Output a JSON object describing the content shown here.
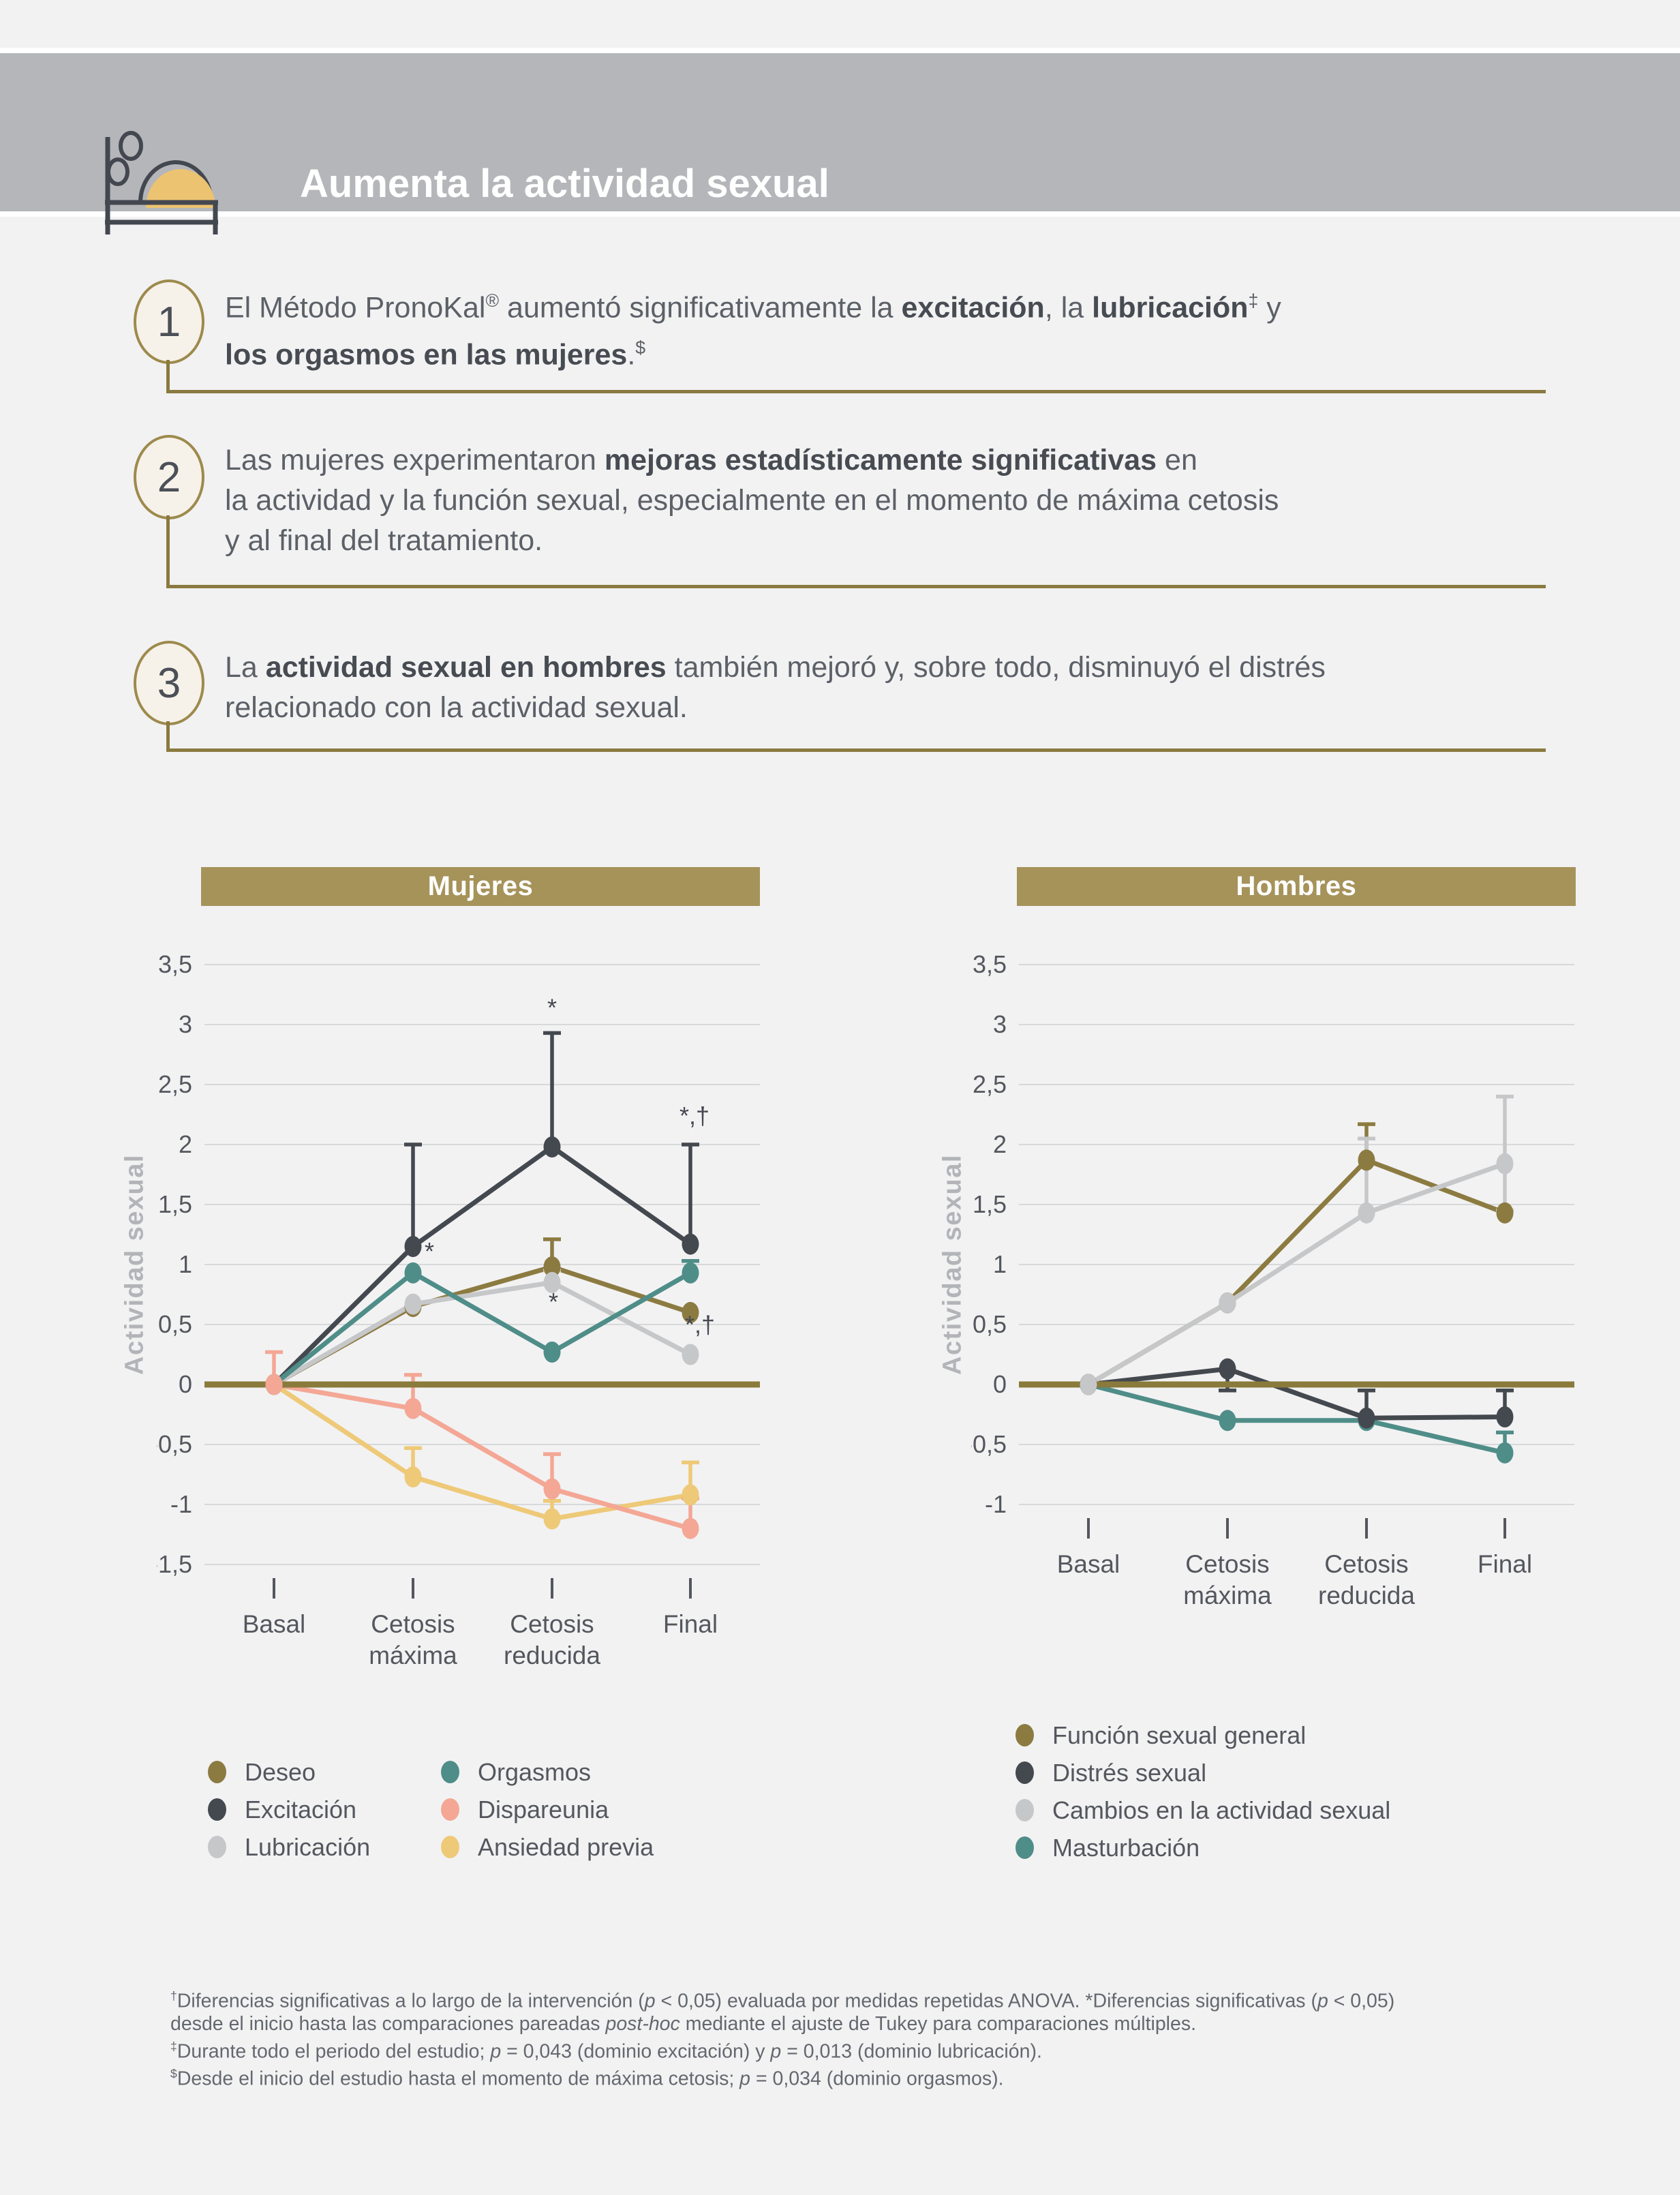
{
  "header": {
    "title": "Aumenta la actividad sexual"
  },
  "points": [
    {
      "number": "1",
      "segments": [
        {
          "t": "El Método PronoKal"
        },
        {
          "t": "®",
          "sup": true
        },
        {
          "t": " aumentó significativamente la "
        },
        {
          "t": "excitación",
          "b": true
        },
        {
          "t": ", la "
        },
        {
          "t": "lubricación",
          "b": true
        },
        {
          "t": "‡",
          "sup": true
        },
        {
          "t": " y"
        },
        {
          "br": true
        },
        {
          "t": "los orgasmos en las mujeres",
          "b": true
        },
        {
          "t": "."
        },
        {
          "t": "$",
          "sup": true
        }
      ]
    },
    {
      "number": "2",
      "segments": [
        {
          "t": "Las mujeres experimentaron "
        },
        {
          "t": "mejoras estadísticamente significativas",
          "b": true
        },
        {
          "t": " en"
        },
        {
          "br": true
        },
        {
          "t": "la actividad y la función sexual, especialmente en el momento de máxima cetosis"
        },
        {
          "br": true
        },
        {
          "t": "y al final del tratamiento."
        }
      ]
    },
    {
      "number": "3",
      "segments": [
        {
          "t": "La "
        },
        {
          "t": "actividad sexual en hombres",
          "b": true
        },
        {
          "t": " también mejoró y, sobre todo, disminuyó el distrés"
        },
        {
          "br": true
        },
        {
          "t": "relacionado con la actividad sexual."
        }
      ]
    }
  ],
  "colors": {
    "background": "#f2f2f3",
    "header_band": "#b5b6ba",
    "gold_bar": "#a6935a",
    "accent_olive": "#8a7a40",
    "zero_line": "#8a7a3b",
    "circle_border": "#9d8a4c",
    "circle_fill": "#f6f2e9",
    "body_text": "#5c6067",
    "tick_text": "#54575d",
    "icon_gold": "#ecc371",
    "icon_dark": "#43474f"
  },
  "chart_data": [
    {
      "id": "mujeres",
      "type": "line",
      "title": "Mujeres",
      "xlabel": "",
      "ylabel": "Actividad sexual",
      "categories": [
        "Basal",
        "Cetosis máxima",
        "Cetosis reducida",
        "Final"
      ],
      "ylim": [
        -1.5,
        3.5
      ],
      "grid": true,
      "zero_baseline": true,
      "yticks": [
        {
          "label": "3,5",
          "v": 3.5
        },
        {
          "label": "3",
          "v": 3
        },
        {
          "label": "2,5",
          "v": 2.5
        },
        {
          "label": "2",
          "v": 2
        },
        {
          "label": "1,5",
          "v": 1.5
        },
        {
          "label": "1",
          "v": 1
        },
        {
          "label": "0,5",
          "v": 0.5
        },
        {
          "label": "0",
          "v": 0
        },
        {
          "label": "-0,5",
          "v": -0.5
        },
        {
          "label": "-1",
          "v": -1
        },
        {
          "label": "-1,5",
          "v": -1.5
        }
      ],
      "series": [
        {
          "name": "Deseo",
          "color": "#8c7b41",
          "values": [
            0,
            0.65,
            0.98,
            0.6
          ],
          "err_top": [
            null,
            null,
            1.21,
            null
          ]
        },
        {
          "name": "Excitación",
          "color": "#44484f",
          "values": [
            0,
            1.15,
            1.98,
            1.17
          ],
          "err_top": [
            null,
            2.0,
            2.93,
            2.0
          ]
        },
        {
          "name": "Lubricación",
          "color": "#c6c7c9",
          "values": [
            0,
            0.67,
            0.85,
            0.25
          ],
          "err_top": [
            null,
            null,
            0.95,
            null
          ]
        },
        {
          "name": "Orgasmos",
          "color": "#4f8d88",
          "values": [
            0,
            0.93,
            0.27,
            0.93
          ],
          "err_top": [
            null,
            null,
            null,
            1.03
          ]
        },
        {
          "name": "Ansiedad previa",
          "color": "#eec977",
          "values": [
            0,
            -0.77,
            -1.12,
            -0.92
          ],
          "err_top": [
            null,
            -0.53,
            -0.97,
            -0.65
          ]
        },
        {
          "name": "Dispareunia",
          "color": "#f4a795",
          "values": [
            0,
            -0.2,
            -0.87,
            -1.2
          ],
          "err_top": [
            0.27,
            0.08,
            -0.58,
            -0.95
          ]
        }
      ],
      "annotations": [
        {
          "text": "*",
          "xi": 1,
          "y": 1.04,
          "dx": 24
        },
        {
          "text": "*",
          "xi": 2,
          "y": 3.07,
          "dx": 0
        },
        {
          "text": "*",
          "xi": 2,
          "y": 0.62,
          "dx": 2
        },
        {
          "text": "*,†",
          "xi": 3,
          "y": 2.17,
          "dx": 6
        },
        {
          "text": "*,†",
          "xi": 3,
          "y": 0.43,
          "dx": 14
        }
      ],
      "legend": {
        "position": "bottom",
        "columns": 2,
        "entries": [
          {
            "label": "Deseo",
            "color": "#8c7b41"
          },
          {
            "label": "Excitación",
            "color": "#44484f"
          },
          {
            "label": "Lubricación",
            "color": "#c6c7c9"
          },
          {
            "label": "Orgasmos",
            "color": "#4f8d88"
          },
          {
            "label": "Dispareunia",
            "color": "#f4a795"
          },
          {
            "label": "Ansiedad previa",
            "color": "#eec977"
          }
        ]
      }
    },
    {
      "id": "hombres",
      "type": "line",
      "title": "Hombres",
      "xlabel": "",
      "ylabel": "Actividad sexual",
      "categories": [
        "Basal",
        "Cetosis máxima",
        "Cetosis reducida",
        "Final"
      ],
      "ylim": [
        -1,
        3.5
      ],
      "grid": true,
      "zero_baseline": true,
      "yticks": [
        {
          "label": "3,5",
          "v": 3.5
        },
        {
          "label": "3",
          "v": 3
        },
        {
          "label": "2,5",
          "v": 2.5
        },
        {
          "label": "2",
          "v": 2
        },
        {
          "label": "1,5",
          "v": 1.5
        },
        {
          "label": "1",
          "v": 1
        },
        {
          "label": "0,5",
          "v": 0.5
        },
        {
          "label": "0",
          "v": 0
        },
        {
          "label": "-0,5",
          "v": -0.5
        },
        {
          "label": "-1",
          "v": -1
        }
      ],
      "series": [
        {
          "name": "Función sexual general",
          "color": "#8c7b41",
          "values": [
            0,
            0.68,
            1.87,
            1.43
          ],
          "err_top": [
            null,
            null,
            2.17,
            null
          ]
        },
        {
          "name": "Masturbación",
          "color": "#4f8d88",
          "values": [
            0,
            -0.3,
            -0.3,
            -0.57
          ],
          "err_top": [
            null,
            null,
            null,
            -0.4
          ]
        },
        {
          "name": "Distrés sexual",
          "color": "#44484f",
          "values": [
            0,
            0.13,
            -0.28,
            -0.27
          ],
          "err_top": [
            null,
            null,
            -0.05,
            -0.05
          ],
          "err_bot": [
            null,
            -0.05,
            null,
            null
          ]
        },
        {
          "name": "Cambios en la actividad sexual",
          "color": "#c6c7c9",
          "values": [
            0,
            0.68,
            1.43,
            1.84
          ],
          "err_top": [
            null,
            null,
            2.05,
            2.4
          ],
          "err_bot": [
            null,
            null,
            null,
            1.45
          ]
        }
      ],
      "annotations": [],
      "legend": {
        "position": "bottom",
        "columns": 1,
        "entries": [
          {
            "label": "Función sexual general",
            "color": "#8c7b41"
          },
          {
            "label": "Distrés sexual",
            "color": "#44484f"
          },
          {
            "label": "Cambios en la actividad sexual",
            "color": "#c6c7c9"
          },
          {
            "label": "Masturbación",
            "color": "#4f8d88"
          }
        ]
      }
    }
  ],
  "footnote": {
    "segments": [
      {
        "t": "†",
        "sup": true
      },
      {
        "t": "Diferencias significativas a lo largo de la intervención ("
      },
      {
        "t": "p",
        "i": true
      },
      {
        "t": " < 0,05) evaluada por medidas repetidas ANOVA. *Diferencias significativas ("
      },
      {
        "t": "p",
        "i": true
      },
      {
        "t": " < 0,05)"
      },
      {
        "br": true
      },
      {
        "t": "desde el inicio hasta las comparaciones pareadas "
      },
      {
        "t": "post-hoc",
        "i": true
      },
      {
        "t": " mediante el ajuste de Tukey para comparaciones múltiples."
      },
      {
        "br": true
      },
      {
        "t": "‡",
        "sup": true
      },
      {
        "t": "Durante todo el periodo del estudio; "
      },
      {
        "t": "p",
        "i": true
      },
      {
        "t": " = 0,043 (dominio excitación) y "
      },
      {
        "t": "p",
        "i": true
      },
      {
        "t": " = 0,013 (dominio lubricación)."
      },
      {
        "br": true
      },
      {
        "t": "$",
        "sup": true
      },
      {
        "t": "Desde el inicio del estudio hasta el momento de máxima cetosis; "
      },
      {
        "t": "p",
        "i": true
      },
      {
        "t": " = 0,034 (dominio orgasmos)."
      }
    ]
  }
}
